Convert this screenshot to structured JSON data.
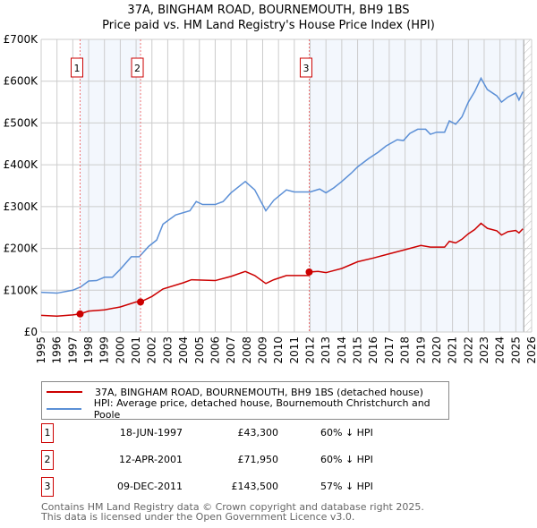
{
  "chart_data": {
    "type": "line",
    "title": "37A, BINGHAM ROAD, BOURNEMOUTH, BH9 1BS",
    "subtitle": "Price paid vs. HM Land Registry's House Price Index (HPI)",
    "xlim": [
      1995,
      2026
    ],
    "ylim": [
      0,
      700000
    ],
    "x_ticks": [
      "1995",
      "1996",
      "1997",
      "1998",
      "1999",
      "2000",
      "2001",
      "2002",
      "2003",
      "2004",
      "2005",
      "2006",
      "2007",
      "2008",
      "2009",
      "2010",
      "2011",
      "2012",
      "2013",
      "2014",
      "2015",
      "2016",
      "2017",
      "2018",
      "2019",
      "2020",
      "2021",
      "2022",
      "2023",
      "2024",
      "2025",
      "2026"
    ],
    "y_ticks": [
      {
        "v": 0,
        "label": "£0"
      },
      {
        "v": 100000,
        "label": "£100K"
      },
      {
        "v": 200000,
        "label": "£200K"
      },
      {
        "v": 300000,
        "label": "£300K"
      },
      {
        "v": 400000,
        "label": "£400K"
      },
      {
        "v": 500000,
        "label": "£500K"
      },
      {
        "v": 600000,
        "label": "£600K"
      },
      {
        "v": 700000,
        "label": "£700K"
      }
    ],
    "grid": true,
    "series": [
      {
        "name": "37A, BINGHAM ROAD, BOURNEMOUTH, BH9 1BS (detached house)",
        "color": "#cc0000",
        "points": [
          [
            1995,
            40
          ],
          [
            1996,
            38
          ],
          [
            1997,
            41
          ],
          [
            1997.46,
            43.3
          ],
          [
            1998,
            50
          ],
          [
            1999,
            53
          ],
          [
            2000,
            60
          ],
          [
            2001,
            72
          ],
          [
            2001.28,
            71.95
          ],
          [
            2002,
            85
          ],
          [
            2002.7,
            103
          ],
          [
            2004,
            118
          ],
          [
            2004.5,
            125
          ],
          [
            2006,
            123
          ],
          [
            2007,
            133
          ],
          [
            2007.9,
            145
          ],
          [
            2008.5,
            135
          ],
          [
            2009.2,
            116
          ],
          [
            2009.7,
            125
          ],
          [
            2010.5,
            135
          ],
          [
            2011.9,
            135
          ],
          [
            2011.94,
            143.5
          ],
          [
            2012.5,
            145
          ],
          [
            2013,
            142
          ],
          [
            2014,
            152
          ],
          [
            2015,
            168
          ],
          [
            2016,
            177
          ],
          [
            2017,
            187
          ],
          [
            2018,
            197
          ],
          [
            2019,
            207
          ],
          [
            2019.6,
            203
          ],
          [
            2020.5,
            203
          ],
          [
            2020.8,
            217
          ],
          [
            2021.2,
            213
          ],
          [
            2021.6,
            222
          ],
          [
            2022,
            235
          ],
          [
            2022.4,
            245
          ],
          [
            2022.8,
            260
          ],
          [
            2023.2,
            248
          ],
          [
            2023.8,
            242
          ],
          [
            2024.1,
            232
          ],
          [
            2024.5,
            240
          ],
          [
            2025,
            243
          ],
          [
            2025.2,
            237
          ],
          [
            2025.45,
            247
          ]
        ]
      },
      {
        "name": "HPI: Average price, detached house, Bournemouth Christchurch and Poole",
        "color": "#5b8fd6",
        "points": [
          [
            1995,
            95
          ],
          [
            1996,
            93
          ],
          [
            1997,
            100
          ],
          [
            1997.5,
            108
          ],
          [
            1998,
            122
          ],
          [
            1998.5,
            123
          ],
          [
            1999,
            131
          ],
          [
            1999.5,
            131
          ],
          [
            2000,
            150
          ],
          [
            2000.7,
            180
          ],
          [
            2001.2,
            180
          ],
          [
            2001.8,
            205
          ],
          [
            2002.3,
            220
          ],
          [
            2002.7,
            258
          ],
          [
            2003.5,
            280
          ],
          [
            2004.4,
            290
          ],
          [
            2004.8,
            312
          ],
          [
            2005.2,
            305
          ],
          [
            2006,
            305
          ],
          [
            2006.5,
            312
          ],
          [
            2007,
            333
          ],
          [
            2007.9,
            360
          ],
          [
            2008.5,
            340
          ],
          [
            2009.2,
            290
          ],
          [
            2009.7,
            315
          ],
          [
            2010.5,
            340
          ],
          [
            2011,
            335
          ],
          [
            2012,
            335
          ],
          [
            2012.6,
            342
          ],
          [
            2013,
            333
          ],
          [
            2013.5,
            345
          ],
          [
            2014,
            360
          ],
          [
            2014.6,
            380
          ],
          [
            2015,
            395
          ],
          [
            2015.7,
            415
          ],
          [
            2016.3,
            430
          ],
          [
            2016.8,
            445
          ],
          [
            2017.5,
            460
          ],
          [
            2017.9,
            458
          ],
          [
            2018.3,
            475
          ],
          [
            2018.8,
            485
          ],
          [
            2019.3,
            485
          ],
          [
            2019.6,
            473
          ],
          [
            2020,
            478
          ],
          [
            2020.5,
            478
          ],
          [
            2020.8,
            505
          ],
          [
            2021.2,
            497
          ],
          [
            2021.6,
            515
          ],
          [
            2022,
            550
          ],
          [
            2022.4,
            575
          ],
          [
            2022.8,
            607
          ],
          [
            2023.2,
            580
          ],
          [
            2023.8,
            565
          ],
          [
            2024.1,
            550
          ],
          [
            2024.5,
            562
          ],
          [
            2025,
            572
          ],
          [
            2025.2,
            555
          ],
          [
            2025.45,
            575
          ]
        ]
      }
    ],
    "units": "thousand GBP",
    "sales": [
      {
        "id": "1",
        "x": 1997.46,
        "y": 43.3,
        "date": "18-JUN-1997",
        "price": "£43,300",
        "hpi": "60% ↓ HPI"
      },
      {
        "id": "2",
        "x": 2001.28,
        "y": 71.95,
        "date": "12-APR-2001",
        "price": "£71,950",
        "hpi": "60% ↓ HPI"
      },
      {
        "id": "3",
        "x": 2011.94,
        "y": 143.5,
        "date": "09-DEC-2011",
        "price": "£143,500",
        "hpi": "57% ↓ HPI"
      }
    ],
    "shaded": [
      [
        1997.46,
        2001.28
      ],
      [
        2011.94,
        2025.5
      ]
    ],
    "forecast_from": 2025.5
  },
  "footer": {
    "line1": "Contains HM Land Registry data © Crown copyright and database right 2025.",
    "line2": "This data is licensed under the Open Government Licence v3.0."
  }
}
